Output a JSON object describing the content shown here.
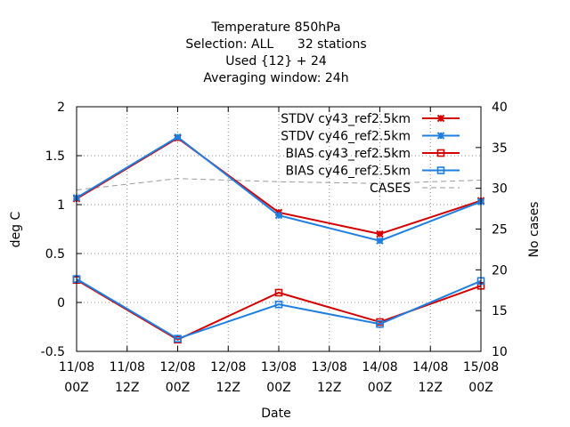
{
  "chart_data": {
    "type": "line",
    "title_lines": [
      "Temperature 850hPa",
      "Selection: ALL      32 stations",
      "Used {12} + 24",
      "Averaging window: 24h"
    ],
    "xlabel": "Date",
    "ylabel": "deg C",
    "y2label": "No cases",
    "ylim": [
      -0.5,
      2
    ],
    "y2lim": [
      10,
      40
    ],
    "yticks": [
      "-0.5",
      "0",
      "0.5",
      "1",
      "1.5",
      "2"
    ],
    "y2ticks": [
      "10",
      "15",
      "20",
      "25",
      "30",
      "35",
      "40"
    ],
    "xticks": [
      [
        "11/08",
        "00Z"
      ],
      [
        "11/08",
        "12Z"
      ],
      [
        "12/08",
        "00Z"
      ],
      [
        "12/08",
        "12Z"
      ],
      [
        "13/08",
        "00Z"
      ],
      [
        "13/08",
        "12Z"
      ],
      [
        "14/08",
        "00Z"
      ],
      [
        "14/08",
        "12Z"
      ],
      [
        "15/08",
        "00Z"
      ]
    ],
    "x_points": [
      0,
      2,
      4,
      6,
      8
    ],
    "grid": true,
    "legend_position": "top-right",
    "series": [
      {
        "name": "STDV cy43_ref2.5km",
        "axis": "y",
        "color": "#d40000",
        "marker": "x",
        "values": [
          1.06,
          1.68,
          0.92,
          0.7,
          1.04
        ]
      },
      {
        "name": "STDV cy46_ref2.5km",
        "axis": "y",
        "color": "#1e7fe0",
        "marker": "x",
        "values": [
          1.07,
          1.69,
          0.89,
          0.63,
          1.03
        ]
      },
      {
        "name": "BIAS cy43_ref2.5km",
        "axis": "y",
        "color": "#d40000",
        "marker": "square",
        "values": [
          0.23,
          -0.38,
          0.1,
          -0.2,
          0.17
        ]
      },
      {
        "name": "BIAS cy46_ref2.5km",
        "axis": "y",
        "color": "#1e7fe0",
        "marker": "square",
        "values": [
          0.24,
          -0.37,
          -0.02,
          -0.22,
          0.22
        ]
      },
      {
        "name": "CASES",
        "axis": "y2",
        "color": "#9a9a9a",
        "marker": "none",
        "dashed": true,
        "values": [
          29.8,
          31.2,
          30.8,
          30.6,
          31
        ]
      }
    ]
  }
}
